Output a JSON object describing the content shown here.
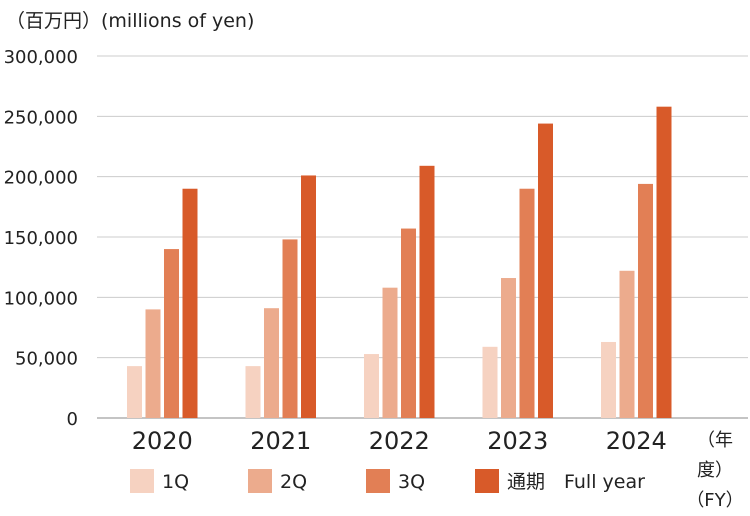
{
  "chart_data": {
    "type": "bar",
    "unit_label": "（百万円）(millions of yen)",
    "fiscal_year_label": "（年度）\n（FY）",
    "categories": [
      "2020",
      "2021",
      "2022",
      "2023",
      "2024"
    ],
    "series": [
      {
        "name": "1Q",
        "color": "#f6d2c1",
        "values": [
          43000,
          43000,
          53000,
          59000,
          63000
        ]
      },
      {
        "name": "2Q",
        "color": "#ecab8d",
        "values": [
          90000,
          91000,
          108000,
          116000,
          122000
        ]
      },
      {
        "name": "3Q",
        "color": "#e27f55",
        "values": [
          140000,
          148000,
          157000,
          190000,
          194000
        ]
      },
      {
        "name": "通期　Full year",
        "color": "#d85a29",
        "values": [
          190000,
          201000,
          209000,
          244000,
          258000
        ]
      }
    ],
    "yticks": [
      0,
      50000,
      100000,
      150000,
      200000,
      250000,
      300000
    ],
    "ytick_labels": [
      "0",
      "50,000",
      "100,000",
      "150,000",
      "200,000",
      "250,000",
      "300,000"
    ],
    "ylim": [
      0,
      300000
    ],
    "grid": true,
    "legend_position": "bottom"
  }
}
